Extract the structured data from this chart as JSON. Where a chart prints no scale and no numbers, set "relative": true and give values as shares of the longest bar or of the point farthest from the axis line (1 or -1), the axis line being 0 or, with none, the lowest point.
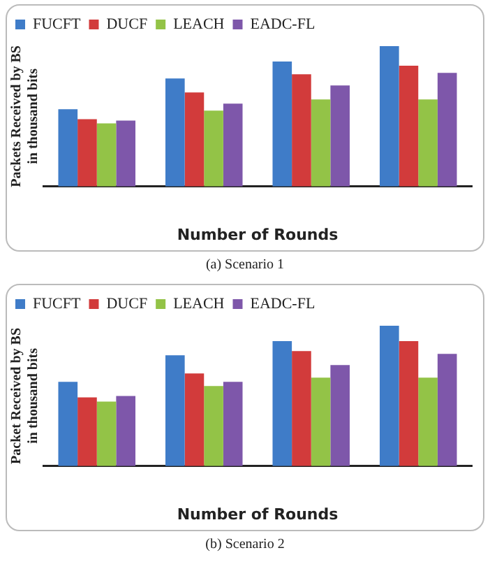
{
  "chart_data": [
    {
      "type": "bar",
      "relative": true,
      "ylabel": "Packets Received by BS in thousand bits",
      "xlabel": "Number of Rounds",
      "categories": [
        null,
        null,
        null,
        null
      ],
      "legend": "top left",
      "annotations": [
        "(a) Scenario 1"
      ],
      "series": [
        {
          "name": "FUCFT",
          "color": "#3f7cc8",
          "values": [
            0.55,
            0.77,
            0.89,
            1
          ]
        },
        {
          "name": "DUCF",
          "color": "#d23b3b",
          "values": [
            0.48,
            0.67,
            0.8,
            0.86
          ]
        },
        {
          "name": "LEACH",
          "color": "#93c347",
          "values": [
            0.45,
            0.54,
            0.62,
            0.62
          ]
        },
        {
          "name": "EADC-FL",
          "color": "#7e57aa",
          "values": [
            0.47,
            0.59,
            0.72,
            0.81
          ]
        }
      ]
    },
    {
      "type": "bar",
      "relative": true,
      "ylabel": "Packet Received by BS in thousand bits",
      "xlabel": "Number of Rounds",
      "categories": [
        null,
        null,
        null,
        null
      ],
      "legend": "top left",
      "annotations": [
        "(b) Scenario 2"
      ],
      "series": [
        {
          "name": "FUCFT",
          "color": "#3f7cc8",
          "values": [
            0.6,
            0.79,
            0.89,
            1
          ]
        },
        {
          "name": "DUCF",
          "color": "#d23b3b",
          "values": [
            0.49,
            0.66,
            0.82,
            0.89
          ]
        },
        {
          "name": "LEACH",
          "color": "#93c347",
          "values": [
            0.46,
            0.57,
            0.63,
            0.63
          ]
        },
        {
          "name": "EADC-FL",
          "color": "#7e57aa",
          "values": [
            0.5,
            0.6,
            0.72,
            0.8
          ]
        }
      ]
    }
  ]
}
